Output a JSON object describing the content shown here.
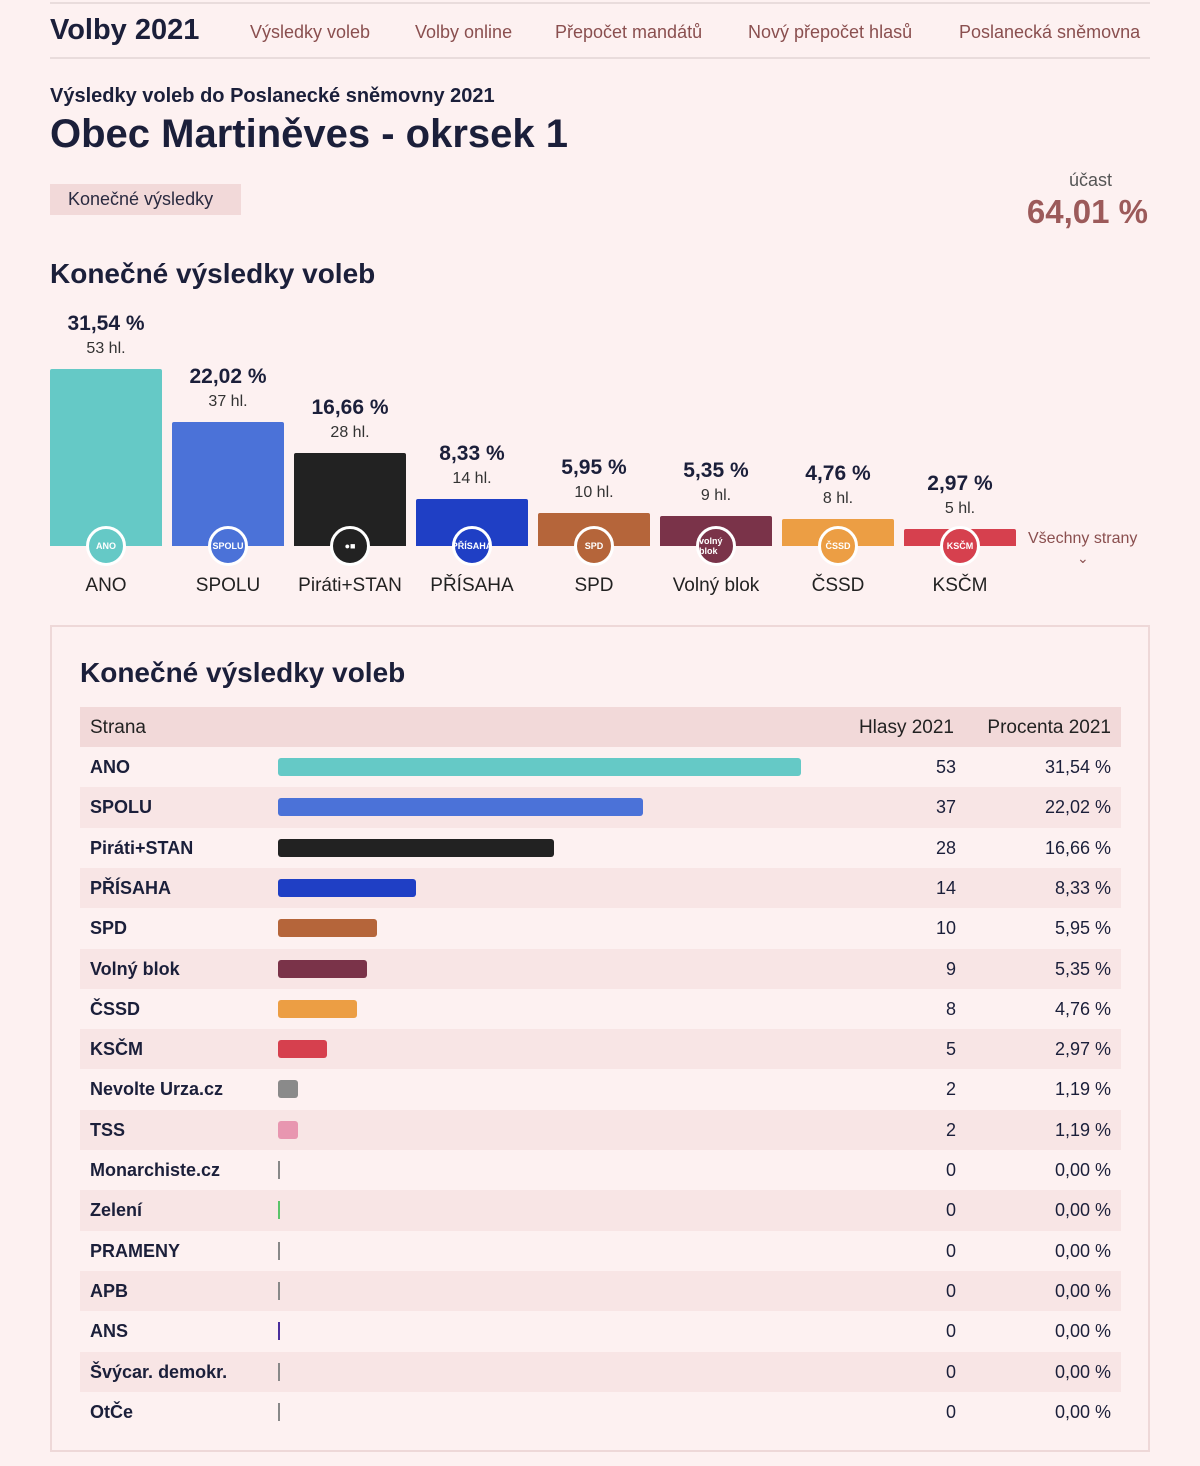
{
  "nav": {
    "brand": "Volby 2021",
    "links": [
      "Výsledky voleb",
      "Volby online",
      "Přepočet mandátů",
      "Nový přepočet hlasů",
      "Poslanecká sněmovna"
    ]
  },
  "header": {
    "subtitle": "Výsledky voleb do Poslanecké sněmovny 2021",
    "title": "Obec Martiněves - okrsek 1",
    "badge": "Konečné výsledky",
    "turnout_label": "účast",
    "turnout_value": "64,01 %"
  },
  "chart_section": {
    "heading": "Konečné výsledky voleb",
    "all_parties_label": "Všechny strany"
  },
  "chart_data": {
    "type": "bar",
    "categories": [
      "ANO",
      "SPOLU",
      "Piráti+STAN",
      "PŘÍSAHA",
      "SPD",
      "Volný blok",
      "ČSSD",
      "KSČM"
    ],
    "values": [
      31.54,
      22.02,
      16.66,
      8.33,
      5.95,
      5.35,
      4.76,
      2.97
    ],
    "value_labels": [
      "31,54 %",
      "22,02 %",
      "16,66 %",
      "8,33 %",
      "5,95 %",
      "5,35 %",
      "4,76 %",
      "2,97 %"
    ],
    "votes": [
      "53 hl.",
      "37 hl.",
      "28 hl.",
      "14 hl.",
      "10 hl.",
      "9 hl.",
      "8 hl.",
      "5 hl."
    ],
    "colors": [
      "#65c9c6",
      "#4b72d8",
      "#222222",
      "#1f3fc5",
      "#b5653a",
      "#7a3349",
      "#ec9e44",
      "#d6404e"
    ],
    "logos": [
      "ANO",
      "SPOLU",
      "●■",
      "PŘÍSAHA",
      "SPD",
      "volný blok",
      "ČSSD",
      "KSČM"
    ]
  },
  "table": {
    "heading": "Konečné výsledky voleb",
    "columns": [
      "Strana",
      "Hlasy 2021",
      "Procenta 2021"
    ],
    "rows": [
      {
        "name": "ANO",
        "votes": "53",
        "pct": "31,54 %",
        "value": 31.54,
        "color": "#65c9c6"
      },
      {
        "name": "SPOLU",
        "votes": "37",
        "pct": "22,02 %",
        "value": 22.02,
        "color": "#4b72d8"
      },
      {
        "name": "Piráti+STAN",
        "votes": "28",
        "pct": "16,66 %",
        "value": 16.66,
        "color": "#222222"
      },
      {
        "name": "PŘÍSAHA",
        "votes": "14",
        "pct": "8,33 %",
        "value": 8.33,
        "color": "#1f3fc5"
      },
      {
        "name": "SPD",
        "votes": "10",
        "pct": "5,95 %",
        "value": 5.95,
        "color": "#b5653a"
      },
      {
        "name": "Volný blok",
        "votes": "9",
        "pct": "5,35 %",
        "value": 5.35,
        "color": "#7a3349"
      },
      {
        "name": "ČSSD",
        "votes": "8",
        "pct": "4,76 %",
        "value": 4.76,
        "color": "#ec9e44"
      },
      {
        "name": "KSČM",
        "votes": "5",
        "pct": "2,97 %",
        "value": 2.97,
        "color": "#d6404e"
      },
      {
        "name": "Nevolte Urza.cz",
        "votes": "2",
        "pct": "1,19 %",
        "value": 1.19,
        "color": "#8a8a8a"
      },
      {
        "name": "TSS",
        "votes": "2",
        "pct": "1,19 %",
        "value": 1.19,
        "color": "#e896b0"
      },
      {
        "name": "Monarchiste.cz",
        "votes": "0",
        "pct": "0,00 %",
        "value": 0,
        "color": "#888888"
      },
      {
        "name": "Zelení",
        "votes": "0",
        "pct": "0,00 %",
        "value": 0,
        "color": "#5bc46a"
      },
      {
        "name": "PRAMENY",
        "votes": "0",
        "pct": "0,00 %",
        "value": 0,
        "color": "#888888"
      },
      {
        "name": "APB",
        "votes": "0",
        "pct": "0,00 %",
        "value": 0,
        "color": "#888888"
      },
      {
        "name": "ANS",
        "votes": "0",
        "pct": "0,00 %",
        "value": 0,
        "color": "#4a2e9c"
      },
      {
        "name": "Švýcar. demokr.",
        "votes": "0",
        "pct": "0,00 %",
        "value": 0,
        "color": "#888888"
      },
      {
        "name": "OtČe",
        "votes": "0",
        "pct": "0,00 %",
        "value": 0,
        "color": "#888888"
      }
    ]
  }
}
